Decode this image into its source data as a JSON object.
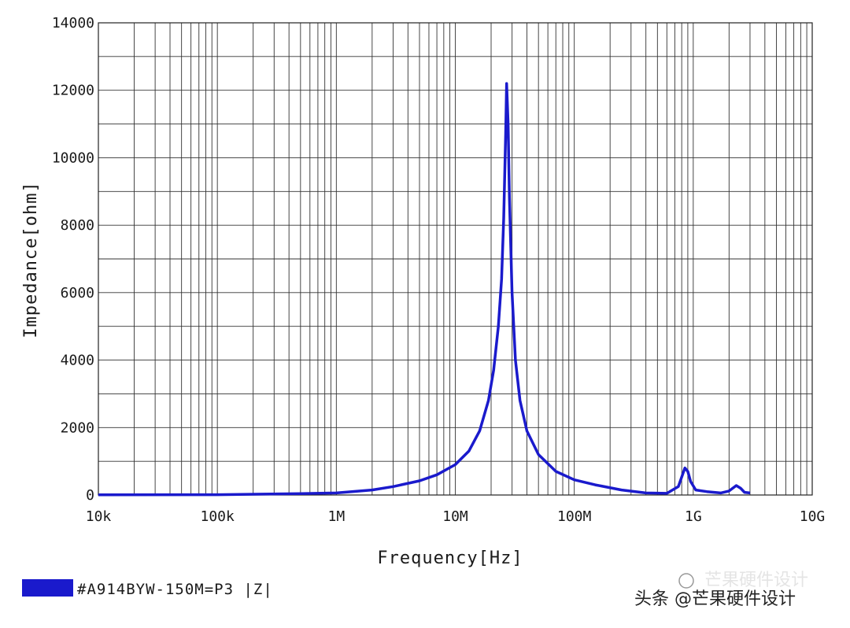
{
  "chart_data": {
    "type": "line",
    "xlabel": "Frequency[Hz]",
    "ylabel": "Impedance[ohm]",
    "xscale": "log",
    "xlim": [
      10000,
      10000000000
    ],
    "ylim": [
      0,
      14000
    ],
    "grid": true,
    "x_tick_labels": [
      "10k",
      "100k",
      "1M",
      "10M",
      "100M",
      "1G",
      "10G"
    ],
    "x_tick_values": [
      10000,
      100000,
      1000000,
      10000000,
      100000000,
      1000000000,
      10000000000
    ],
    "y_tick_labels": [
      "0",
      "2000",
      "4000",
      "6000",
      "8000",
      "10000",
      "12000",
      "14000"
    ],
    "y_tick_values": [
      0,
      2000,
      4000,
      6000,
      8000,
      10000,
      12000,
      14000
    ],
    "series": [
      {
        "name": "#A914BYW-150M=P3 |Z|",
        "color": "#1a1acc",
        "x": [
          10000,
          100000,
          500000,
          1000000,
          2000000,
          3000000,
          5000000,
          7000000,
          10000000,
          13000000,
          16000000,
          19000000,
          21000000,
          23000000,
          24500000,
          25500000,
          26500000,
          27000000,
          27800000,
          28500000,
          30000000,
          32000000,
          35000000,
          40000000,
          50000000,
          70000000,
          100000000,
          150000000,
          250000000,
          400000000,
          600000000,
          750000000,
          850000000,
          900000000,
          950000000,
          1050000000,
          1300000000,
          1700000000,
          2000000000,
          2300000000,
          2500000000,
          2700000000,
          3000000000
        ],
        "y": [
          5,
          10,
          40,
          60,
          150,
          250,
          420,
          600,
          900,
          1300,
          1900,
          2800,
          3700,
          5000,
          6400,
          8200,
          10700,
          12200,
          11000,
          8800,
          6000,
          4000,
          2800,
          1900,
          1200,
          700,
          450,
          300,
          150,
          60,
          50,
          250,
          800,
          700,
          400,
          150,
          100,
          60,
          120,
          280,
          200,
          80,
          60
        ]
      }
    ]
  },
  "watermark": {
    "text_front": "头条 @芒果硬件设计",
    "text_back": "芒果硬件设计"
  }
}
